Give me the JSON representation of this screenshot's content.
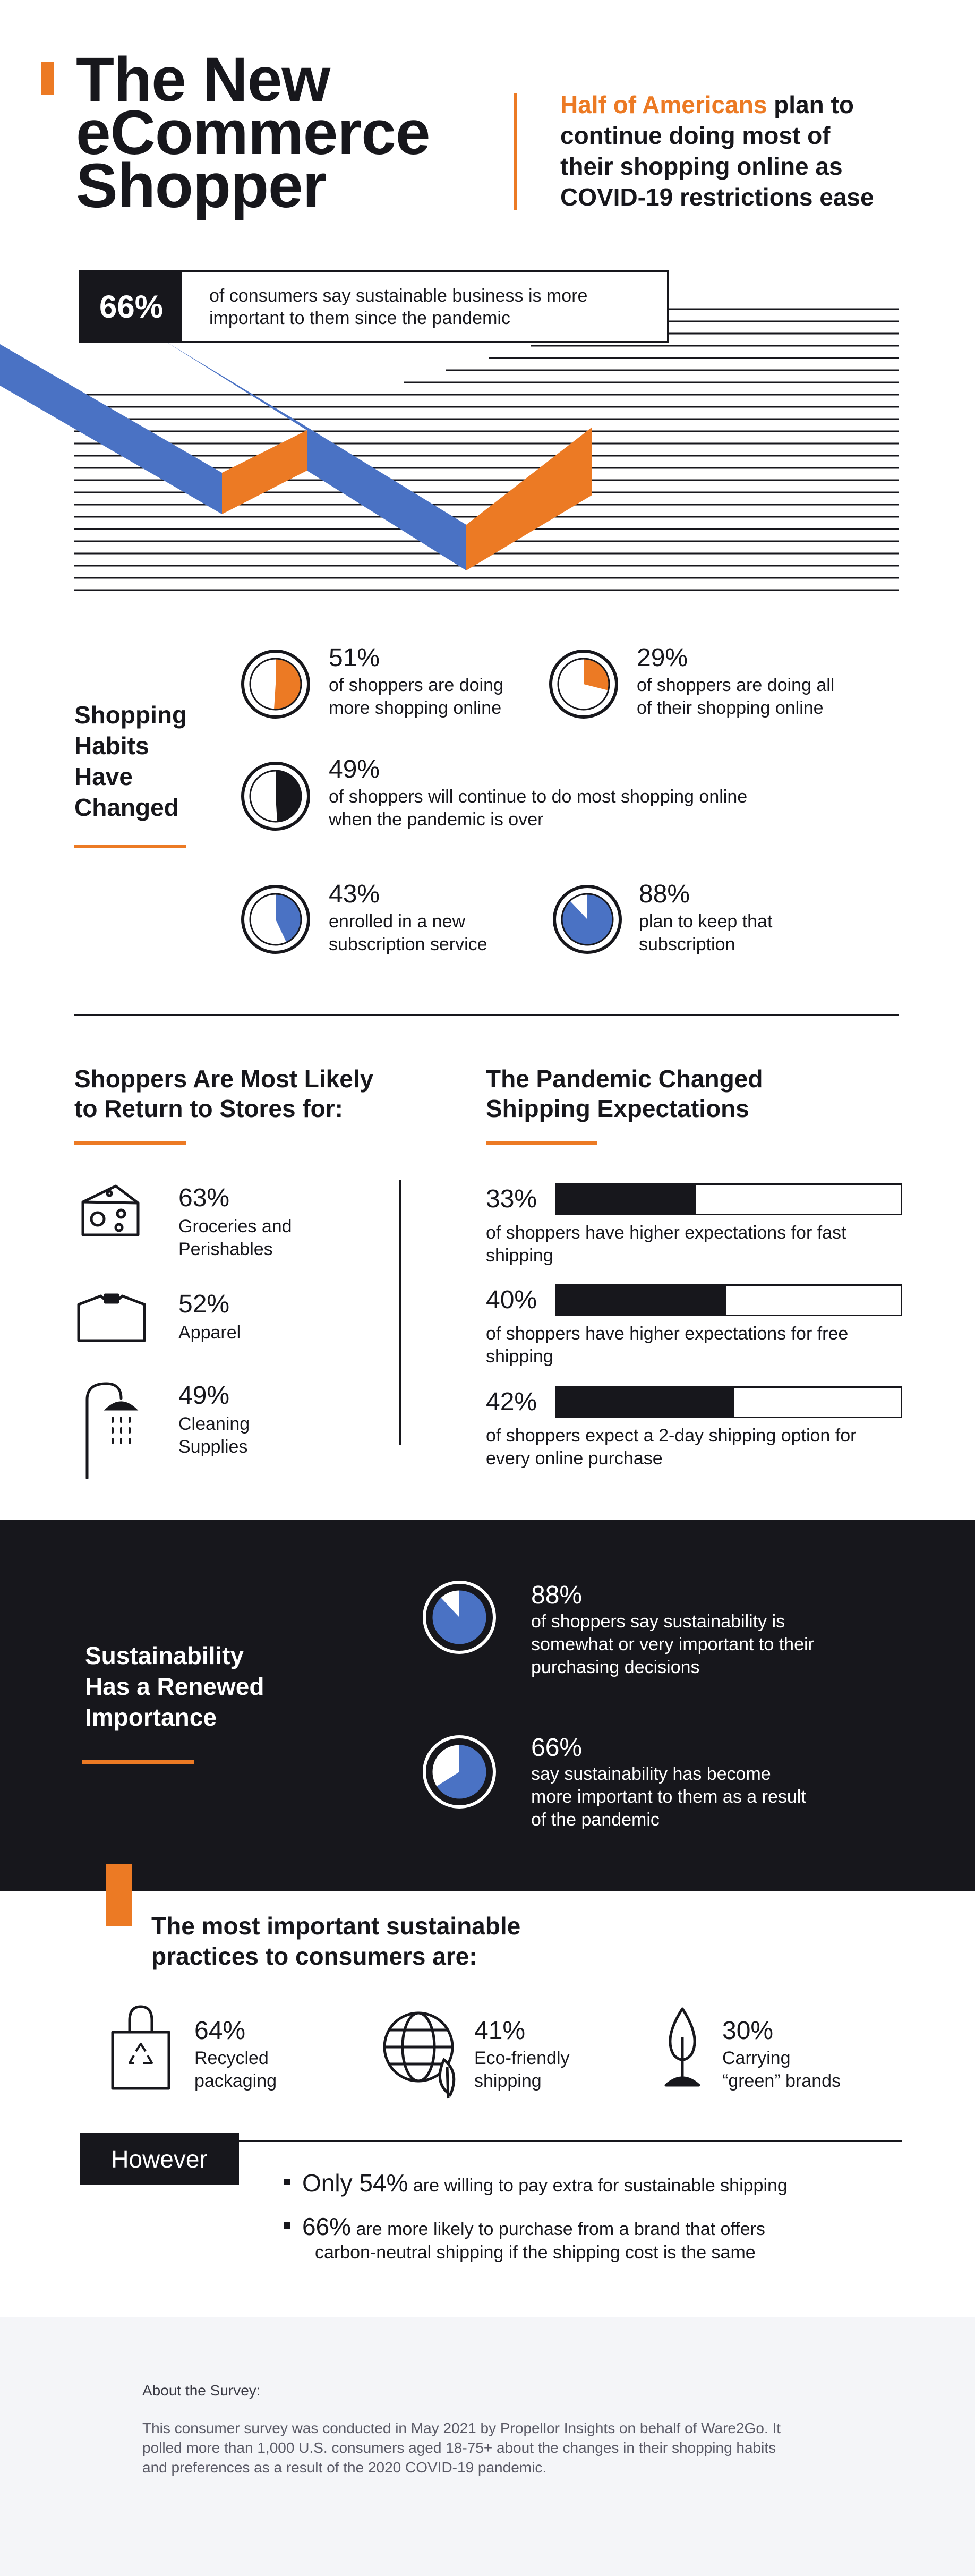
{
  "colors": {
    "orange": "#ec7a24",
    "blue": "#4a72c4",
    "dark": "#17171c",
    "white": "#ffffff",
    "footer_bg": "#f4f5f8"
  },
  "header": {
    "title_line1": "The New",
    "title_line2": "eCommerce",
    "title_line3": "Shopper",
    "subtitle_highlight": "Half of Americans",
    "subtitle_rest_line1": " plan to",
    "subtitle_line2": "continue doing most of",
    "subtitle_line3": "their shopping online as",
    "subtitle_line4": "COVID-19 restrictions ease"
  },
  "hero_stat": {
    "value": "66%",
    "text_line1": "of consumers say sustainable business is more",
    "text_line2": "important to them since the pandemic"
  },
  "habits": {
    "heading": [
      "Shopping",
      "Habits",
      "Have",
      "Changed"
    ],
    "stats": [
      {
        "value": "51%",
        "fraction": 0.51,
        "color": "orange",
        "line1": "of shoppers are doing",
        "line2": "more shopping online",
        "icon": "pie-chart-icon"
      },
      {
        "value": "29%",
        "fraction": 0.29,
        "color": "orange",
        "line1": "of shoppers are doing all",
        "line2": "of their shopping online",
        "icon": "pie-chart-icon"
      },
      {
        "value": "49%",
        "fraction": 0.49,
        "color": "dark",
        "line1": "of shoppers will continue to do most shopping online",
        "line2": "when the pandemic is over",
        "icon": "pie-chart-icon"
      },
      {
        "value": "43%",
        "fraction": 0.43,
        "color": "blue",
        "line1": "enrolled in a new",
        "line2": "subscription service",
        "icon": "pie-chart-icon"
      },
      {
        "value": "88%",
        "fraction": 0.88,
        "color": "blue",
        "line1": "plan to keep that",
        "line2": "subscription",
        "icon": "pie-chart-icon"
      }
    ]
  },
  "stores": {
    "heading_line1": "Shoppers Are Most Likely",
    "heading_line2": "to Return to Stores for:",
    "items": [
      {
        "value": "63%",
        "line1": "Groceries and",
        "line2": "Perishables",
        "icon": "cheese-icon"
      },
      {
        "value": "52%",
        "line1": "Apparel",
        "line2": "",
        "icon": "shirt-icon"
      },
      {
        "value": "49%",
        "line1": "Cleaning",
        "line2": "Supplies",
        "icon": "shower-icon"
      }
    ]
  },
  "shipping": {
    "heading_line1": "The Pandemic Changed",
    "heading_line2": "Shipping Expectations",
    "items": [
      {
        "value": "33%",
        "fraction": 0.33,
        "line1": "of shoppers have higher expectations for fast",
        "line2": "shipping"
      },
      {
        "value": "40%",
        "fraction": 0.4,
        "line1": "of shoppers have higher expectations for free",
        "line2": "shipping"
      },
      {
        "value": "42%",
        "fraction": 0.42,
        "line1": "of shoppers expect a 2-day shipping option for",
        "line2": "every online purchase"
      }
    ]
  },
  "sustainability": {
    "heading": [
      "Sustainability",
      "Has a Renewed",
      "Importance"
    ],
    "stats": [
      {
        "value": "88%",
        "fraction": 0.88,
        "lines": [
          "of shoppers say sustainability is",
          "somewhat or very important to their",
          "purchasing decisions"
        ],
        "icon": "pie-chart-icon"
      },
      {
        "value": "66%",
        "fraction": 0.66,
        "lines": [
          "say sustainability has become",
          "more important to them as a result",
          "of the pandemic"
        ],
        "icon": "pie-chart-icon"
      }
    ]
  },
  "practices": {
    "heading_line1": "The most important sustainable",
    "heading_line2": "practices to consumers are:",
    "items": [
      {
        "value": "64%",
        "line1": "Recycled",
        "line2": "packaging",
        "icon": "recycle-bag-icon"
      },
      {
        "value": "41%",
        "line1": "Eco-friendly",
        "line2": "shipping",
        "icon": "globe-leaf-icon"
      },
      {
        "value": "30%",
        "line1": "Carrying",
        "line2": "“green” brands",
        "icon": "sprout-icon"
      }
    ]
  },
  "however": {
    "label": "However",
    "bullet1_strong": "Only 54%",
    "bullet1_rest": " are willing to pay extra for sustainable shipping",
    "bullet2_strong": "66%",
    "bullet2_rest": " are more likely to purchase from a brand that offers",
    "bullet2_line2": "carbon-neutral shipping if the shipping cost is the same"
  },
  "footer": {
    "heading": "About the Survey:",
    "line1": "This consumer survey was conducted in May 2021 by Propellor Insights on behalf of Ware2Go. It",
    "line2": "polled more than 1,000 U.S. consumers aged 18-75+ about the changes in their shopping habits",
    "line3": "and preferences as a result of the 2020 COVID-19 pandemic."
  }
}
